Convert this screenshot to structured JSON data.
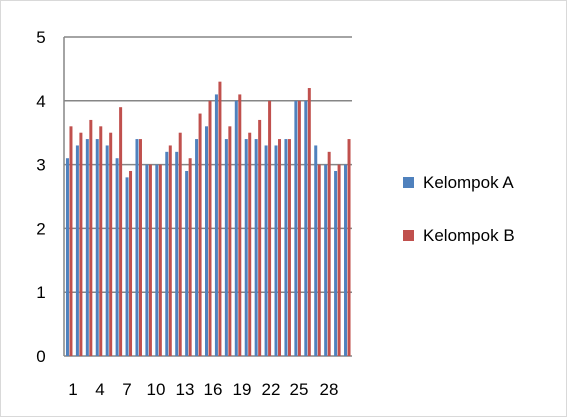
{
  "chart_data": {
    "type": "bar",
    "categories": [
      "1",
      "2",
      "3",
      "4",
      "5",
      "6",
      "7",
      "8",
      "9",
      "10",
      "11",
      "12",
      "13",
      "14",
      "15",
      "16",
      "17",
      "18",
      "19",
      "20",
      "21",
      "22",
      "23",
      "24",
      "25",
      "26",
      "27",
      "28",
      "29"
    ],
    "x_tick_labels": [
      "1",
      "4",
      "7",
      "10",
      "13",
      "16",
      "19",
      "22",
      "25",
      "28"
    ],
    "y_ticks": [
      "0",
      "1",
      "2",
      "3",
      "4",
      "5"
    ],
    "ylim": [
      0,
      5
    ],
    "grid": true,
    "legend_position": "right",
    "series": [
      {
        "name": "Kelompok A",
        "color": "#4f81bd",
        "values": [
          3.1,
          3.3,
          3.4,
          3.4,
          3.3,
          3.1,
          2.8,
          3.4,
          3.0,
          3.0,
          3.2,
          3.2,
          2.9,
          3.4,
          3.6,
          4.1,
          3.4,
          4.0,
          3.4,
          3.4,
          3.3,
          3.3,
          3.4,
          4.0,
          4.0,
          3.3,
          3.0,
          2.9,
          3.0
        ]
      },
      {
        "name": "Kelompok B",
        "color": "#c0504d",
        "values": [
          3.6,
          3.5,
          3.7,
          3.6,
          3.5,
          3.9,
          2.9,
          3.4,
          3.0,
          3.0,
          3.3,
          3.5,
          3.1,
          3.8,
          4.0,
          4.3,
          3.6,
          4.1,
          3.5,
          3.7,
          4.0,
          3.4,
          3.4,
          4.0,
          4.2,
          3.0,
          3.2,
          3.0,
          3.4
        ]
      }
    ]
  }
}
